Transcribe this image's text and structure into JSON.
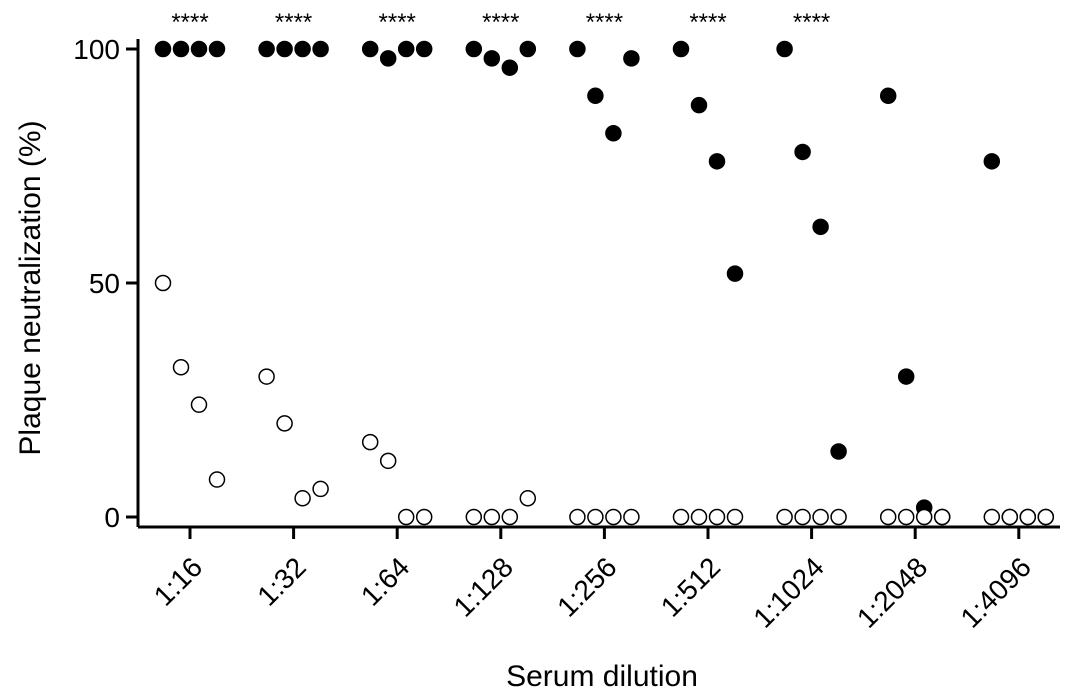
{
  "chart_data": {
    "type": "scatter",
    "title": "",
    "xlabel": "Serum dilution",
    "ylabel": "Plaque neutralization (%)",
    "ylim": [
      0,
      100
    ],
    "yticks": [
      0,
      50,
      100
    ],
    "categories": [
      "1:16",
      "1:32",
      "1:64",
      "1:128",
      "1:256",
      "1:512",
      "1:1024",
      "1:2048",
      "1:4096"
    ],
    "significance": [
      "****",
      "****",
      "****",
      "****",
      "****",
      "****",
      "****",
      "",
      ""
    ],
    "series": [
      {
        "marker": "filled",
        "color": "#000000",
        "values": [
          [
            100,
            100,
            100,
            100
          ],
          [
            100,
            100,
            100,
            100
          ],
          [
            100,
            98,
            100,
            100
          ],
          [
            100,
            98,
            96,
            100
          ],
          [
            100,
            90,
            82,
            98
          ],
          [
            100,
            88,
            76,
            52
          ],
          [
            100,
            78,
            62,
            14
          ],
          [
            90,
            30,
            2,
            0
          ],
          [
            76,
            0,
            0,
            0
          ]
        ]
      },
      {
        "marker": "open",
        "color": "#ffffff",
        "values": [
          [
            50,
            32,
            24,
            8
          ],
          [
            30,
            20,
            4,
            6
          ],
          [
            16,
            12,
            0,
            0
          ],
          [
            0,
            0,
            0,
            4
          ],
          [
            0,
            0,
            0,
            0
          ],
          [
            0,
            0,
            0,
            0
          ],
          [
            0,
            0,
            0,
            0
          ],
          [
            0,
            0,
            0,
            0
          ],
          [
            0,
            0,
            0,
            0
          ]
        ]
      }
    ]
  }
}
